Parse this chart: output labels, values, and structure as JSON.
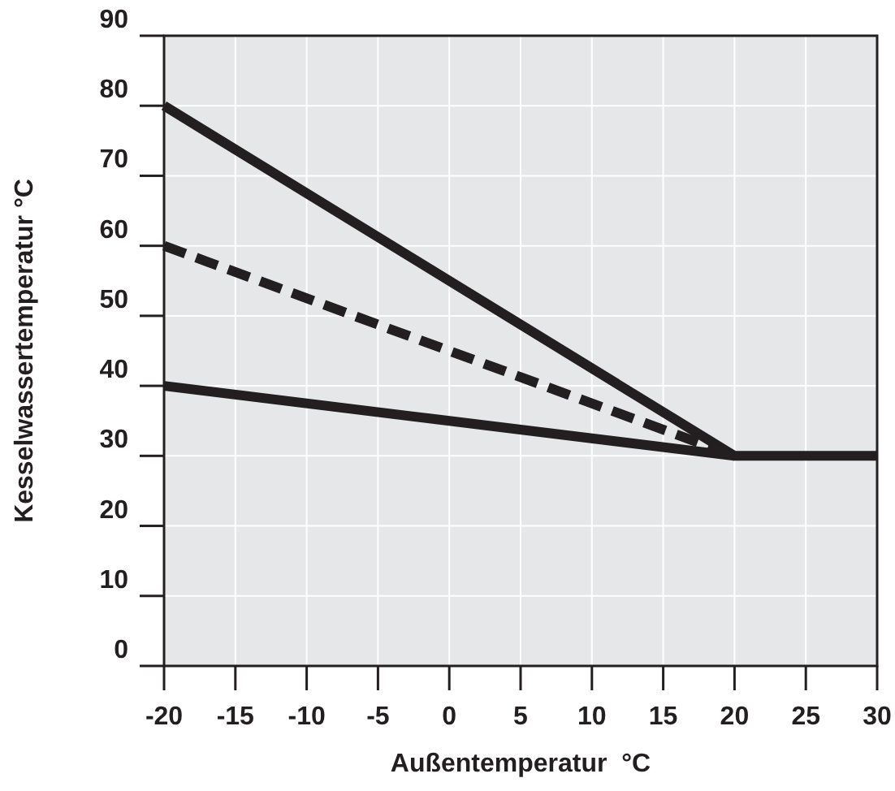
{
  "chart_data": {
    "type": "line",
    "xlabel": "Außentemperatur  °C",
    "ylabel": "Kesselwassertemperatur  °C",
    "xlim": [
      -20,
      30
    ],
    "ylim": [
      0,
      90
    ],
    "xticks": [
      -20,
      -15,
      -10,
      -5,
      0,
      5,
      10,
      15,
      20,
      25,
      30
    ],
    "yticks": [
      0,
      10,
      20,
      30,
      40,
      50,
      60,
      70,
      80,
      90
    ],
    "grid": true,
    "series": [
      {
        "color": "#231f20",
        "x": [
          -20,
          20,
          30
        ],
        "values": [
          80,
          30,
          30
        ],
        "line_style": "solid"
      },
      {
        "color": "#231f20",
        "x": [
          -20,
          20
        ],
        "values": [
          60,
          30
        ],
        "line_style": "dashed"
      },
      {
        "color": "#231f20",
        "x": [
          -20,
          20
        ],
        "values": [
          40,
          30
        ],
        "line_style": "solid"
      }
    ]
  }
}
